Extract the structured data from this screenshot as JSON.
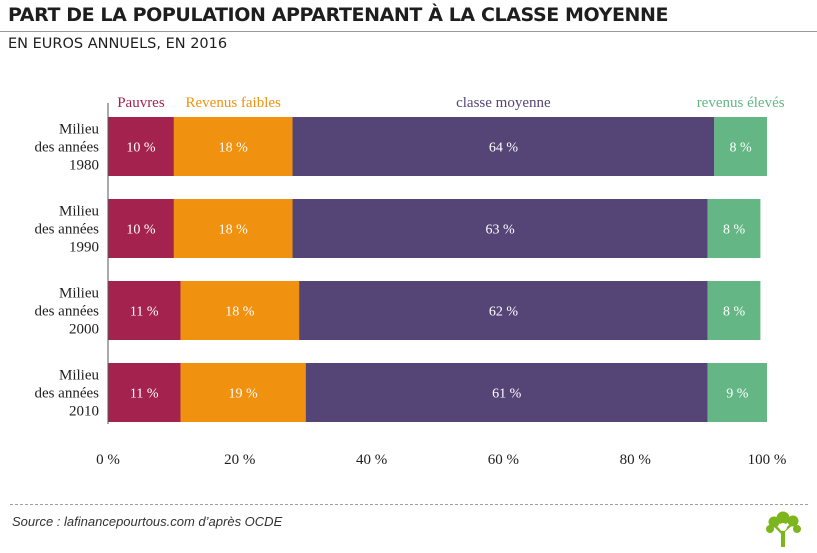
{
  "header": {
    "title": "PART DE LA POPULATION APPARTENANT À LA CLASSE MOYENNE",
    "subtitle": "EN EUROS ANNUELS, EN 2016"
  },
  "footer": {
    "source": "Source : lafinancepourtous.com d’après OCDE"
  },
  "logo_icon": "tree-icon",
  "chart_data": {
    "type": "bar",
    "orientation": "horizontal",
    "stacked": true,
    "categories": [
      [
        "Milieu",
        "des années",
        "1980"
      ],
      [
        "Milieu",
        "des années",
        "1990"
      ],
      [
        "Milieu",
        "des années",
        "2000"
      ],
      [
        "Milieu",
        "des années",
        "2010"
      ]
    ],
    "series": [
      {
        "name": "Pauvres",
        "color": "#a4234e",
        "values": [
          10,
          10,
          11,
          11
        ],
        "labels": [
          "10 %",
          "10 %",
          "11 %",
          "11 %"
        ]
      },
      {
        "name": "Revenus faibles",
        "color": "#f0920f",
        "values": [
          18,
          18,
          18,
          19
        ],
        "labels": [
          "18 %",
          "18 %",
          "18 %",
          "19 %"
        ]
      },
      {
        "name": "classe moyenne",
        "color": "#554577",
        "values": [
          64,
          63,
          62,
          61
        ],
        "labels": [
          "64 %",
          "63 %",
          "62 %",
          "61 %"
        ]
      },
      {
        "name": "revenus élevés",
        "color": "#64b785",
        "values": [
          8,
          8,
          8,
          9
        ],
        "labels": [
          "8 %",
          "8 %",
          "8 %",
          "9 %"
        ]
      }
    ],
    "xlim": [
      0,
      100
    ],
    "x_ticks": [
      0,
      20,
      40,
      60,
      80,
      100
    ],
    "x_tick_labels": [
      "0 %",
      "20 %",
      "40 %",
      "60 %",
      "80 %",
      "100 %"
    ],
    "legend_position": "top",
    "grid": false
  }
}
